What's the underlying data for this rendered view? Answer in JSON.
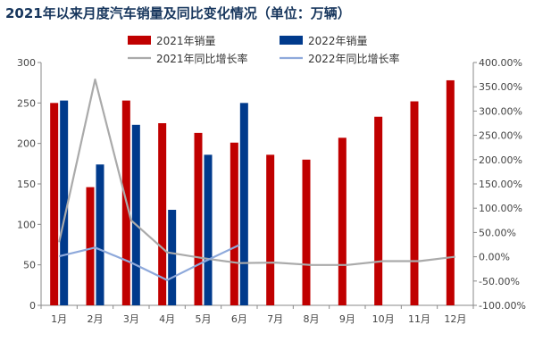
{
  "chart_data": {
    "type": "bar",
    "title": "2021年以来月度汽车销量及同比变化情况（单位：万辆）",
    "categories": [
      "1月",
      "2月",
      "3月",
      "4月",
      "5月",
      "6月",
      "7月",
      "8月",
      "9月",
      "10月",
      "11月",
      "12月"
    ],
    "series": [
      {
        "name": "2021年销量",
        "kind": "bar",
        "axis": "left",
        "color": "#c00000",
        "values": [
          250,
          146,
          253,
          225,
          213,
          201,
          186,
          180,
          207,
          233,
          252,
          278
        ]
      },
      {
        "name": "2022年销量",
        "kind": "bar",
        "axis": "left",
        "color": "#003a8c",
        "values": [
          253,
          174,
          223,
          118,
          186,
          250,
          null,
          null,
          null,
          null,
          null,
          null
        ]
      },
      {
        "name": "2021年同比增长率",
        "kind": "line",
        "axis": "right",
        "color": "#aaaaaa",
        "values": [
          30.0,
          365.0,
          75.0,
          9.0,
          -3.0,
          -13.0,
          -12.0,
          -17.0,
          -17.0,
          -9.0,
          -9.0,
          0.0
        ]
      },
      {
        "name": "2022年同比增长率",
        "kind": "line",
        "axis": "right",
        "color": "#8ea9db",
        "values": [
          1.0,
          19.0,
          -12.0,
          -48.0,
          -11.0,
          24.0,
          null,
          null,
          null,
          null,
          null,
          null
        ]
      }
    ],
    "y_left": {
      "min": 0,
      "max": 300,
      "ticks": [
        "0",
        "50",
        "100",
        "150",
        "200",
        "250",
        "300"
      ]
    },
    "y_right": {
      "min": -100,
      "max": 400,
      "ticks": [
        "-100.00%",
        "-50.00%",
        "0.00%",
        "50.00%",
        "100.00%",
        "150.00%",
        "200.00%",
        "250.00%",
        "300.00%",
        "350.00%",
        "400.00%"
      ]
    },
    "legend_position": "top",
    "grid": false
  }
}
